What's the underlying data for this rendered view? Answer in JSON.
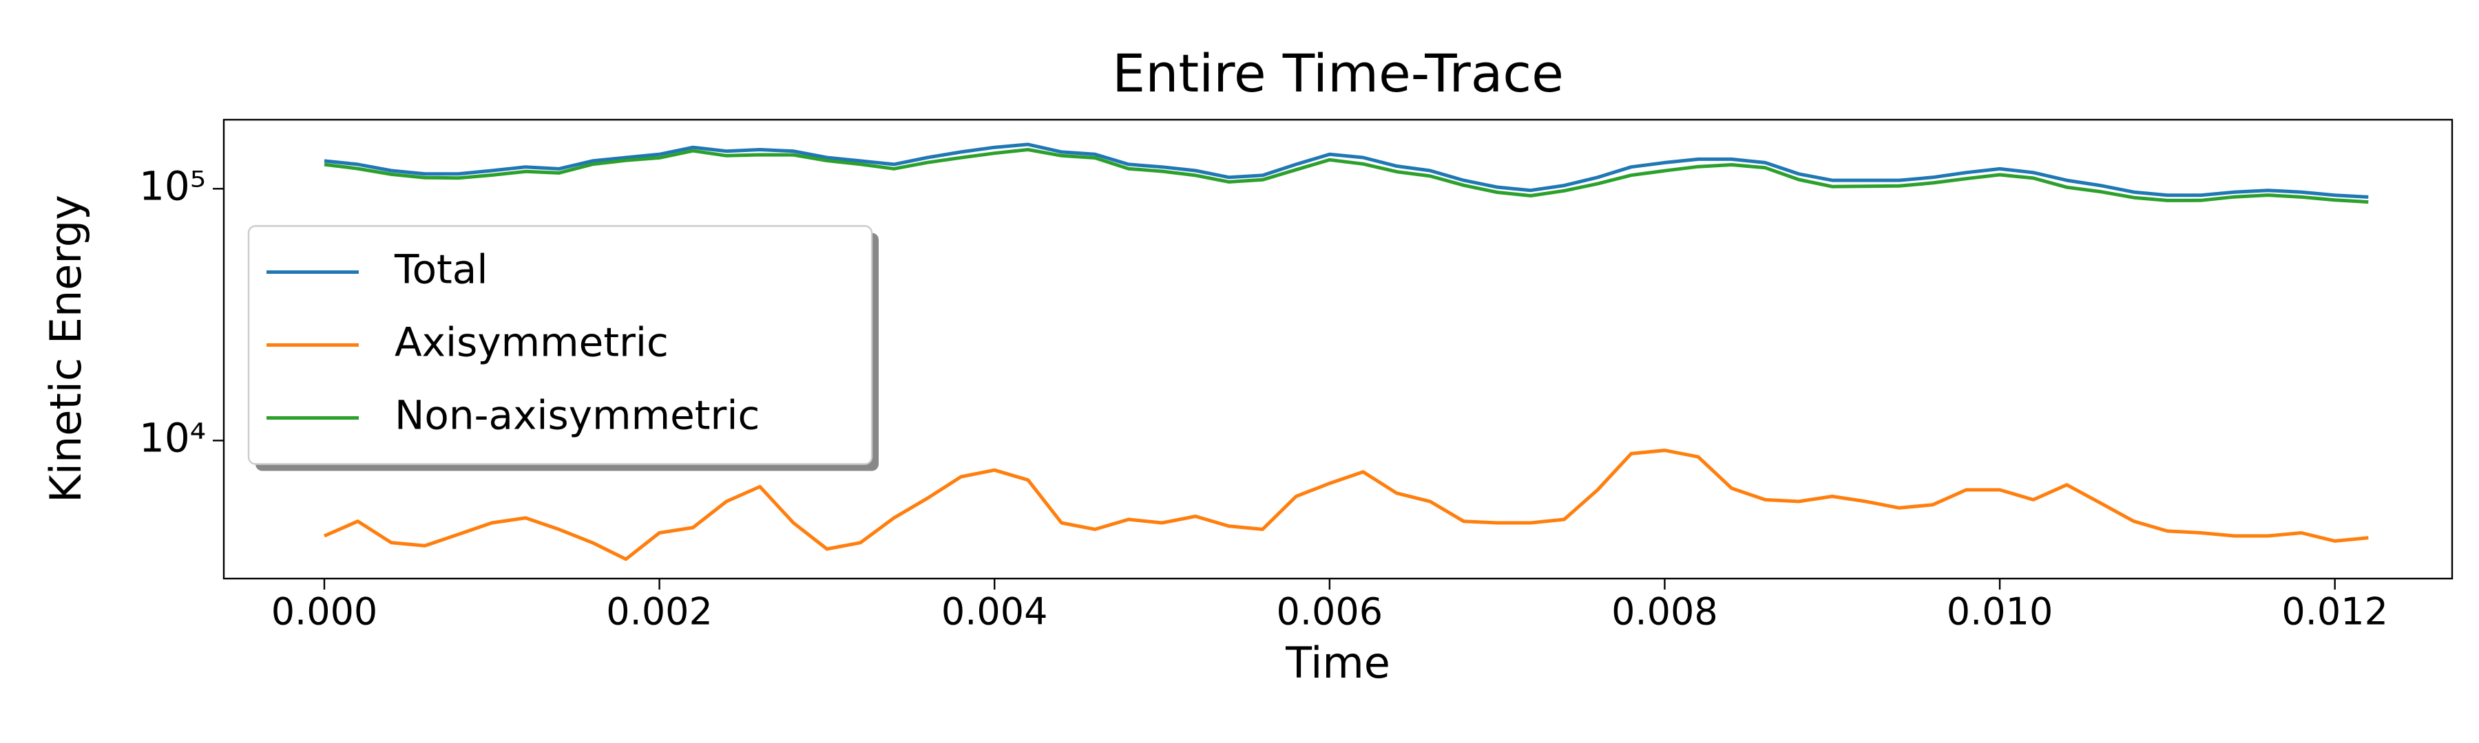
{
  "chart_data": {
    "type": "line",
    "title": "Entire Time-Trace",
    "xlabel": "Time",
    "ylabel": "Kinetic Energy",
    "x": [
      0,
      0.0002,
      0.0004,
      0.0006,
      0.0008,
      0.001,
      0.0012,
      0.0014,
      0.0016,
      0.0018,
      0.002,
      0.0022,
      0.0024,
      0.0026,
      0.0028,
      0.003,
      0.0032,
      0.0034,
      0.0036,
      0.0038,
      0.004,
      0.0042,
      0.0044,
      0.0046,
      0.0048,
      0.005,
      0.0052,
      0.0054,
      0.0056,
      0.0058,
      0.006,
      0.0062,
      0.0064,
      0.0066,
      0.0068,
      0.007,
      0.0072,
      0.0074,
      0.0076,
      0.0078,
      0.008,
      0.0082,
      0.0084,
      0.0086,
      0.0088,
      0.009,
      0.0092,
      0.0094,
      0.0096,
      0.0098,
      0.01,
      0.0102,
      0.0104,
      0.0106,
      0.0108,
      0.011,
      0.0112,
      0.0114,
      0.0116,
      0.0118,
      0.012,
      0.0122
    ],
    "series": [
      {
        "name": "Total",
        "color": "#1f77b4",
        "values": [
          129000,
          125000,
          118000,
          114500,
          114500,
          118000,
          122000,
          120000,
          129000,
          133000,
          137000,
          146000,
          141000,
          143000,
          141000,
          133000,
          129000,
          125000,
          133000,
          140000,
          146000,
          150000,
          140000,
          137000,
          125000,
          122000,
          118000,
          111000,
          113000,
          125000,
          137000,
          133000,
          123000,
          118000,
          108000,
          101500,
          98500,
          103000,
          111000,
          122000,
          127000,
          131000,
          131000,
          127000,
          114500,
          108000,
          108000,
          108000,
          111000,
          116000,
          120000,
          116000,
          108000,
          103000,
          97000,
          94200,
          94200,
          97000,
          98500,
          97000,
          94200,
          92700
        ]
      },
      {
        "name": "Axisymmetric",
        "color": "#ff7f0e",
        "values": [
          4180,
          4780,
          3930,
          3820,
          4240,
          4710,
          4930,
          4440,
          3930,
          3380,
          4300,
          4510,
          5730,
          6560,
          4710,
          3710,
          3930,
          4930,
          5900,
          7180,
          7630,
          6970,
          4710,
          4440,
          4860,
          4710,
          5000,
          4570,
          4440,
          6000,
          6760,
          7510,
          6180,
          5730,
          4780,
          4710,
          4710,
          4860,
          6370,
          8870,
          9140,
          8610,
          6460,
          5820,
          5730,
          6000,
          5730,
          5400,
          5560,
          6370,
          6370,
          5820,
          6670,
          5650,
          4780,
          4370,
          4300,
          4180,
          4180,
          4300,
          3990,
          4110
        ]
      },
      {
        "name": "Non-axisymmetric",
        "color": "#2ca02c",
        "values": [
          124820,
          120220,
          114070,
          110680,
          110260,
          113290,
          117070,
          115560,
          125070,
          129620,
          132700,
          141490,
          135270,
          136440,
          136290,
          129290,
          125070,
          120070,
          127100,
          132820,
          138370,
          143030,
          135290,
          132560,
          120140,
          117290,
          113000,
          106430,
          108560,
          119000,
          130240,
          125490,
          116820,
          112270,
          103220,
          96790,
          93790,
          98140,
          104630,
          113130,
          117860,
          122390,
          124540,
          121180,
          108770,
          102000,
          102270,
          102600,
          105440,
          109630,
          113630,
          110180,
          101330,
          97350,
          92220,
          89830,
          89900,
          92820,
          94320,
          92700,
          90210,
          88590
        ]
      }
    ],
    "xlim": [
      -0.0006,
      0.0127
    ],
    "ylim": [
      2830,
      188000
    ],
    "yscale": "log",
    "xticks": [
      {
        "value": 0,
        "label": "0.000"
      },
      {
        "value": 0.002,
        "label": "0.002"
      },
      {
        "value": 0.004,
        "label": "0.004"
      },
      {
        "value": 0.006,
        "label": "0.006"
      },
      {
        "value": 0.008,
        "label": "0.008"
      },
      {
        "value": 0.01,
        "label": "0.010"
      },
      {
        "value": 0.012,
        "label": "0.012"
      }
    ],
    "yticks": [
      {
        "value": 10000,
        "label": "10⁴"
      },
      {
        "value": 100000,
        "label": "10⁵"
      }
    ],
    "legend": "center left",
    "grid": false
  }
}
